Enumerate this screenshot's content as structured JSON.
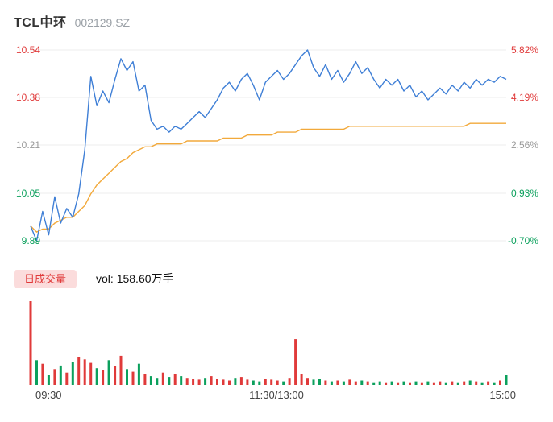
{
  "header": {
    "name": "TCL中环",
    "code": "002129.SZ"
  },
  "colors": {
    "line": "#3f7fd6",
    "avg": "#f2a93b",
    "up": "#e03a3a",
    "down": "#0ba05c",
    "flat": "#999999",
    "grid": "#ececec"
  },
  "price_axis": [
    {
      "label": "10.54",
      "color": "#e03a3a"
    },
    {
      "label": "10.38",
      "color": "#e03a3a"
    },
    {
      "label": "10.21",
      "color": "#999999"
    },
    {
      "label": "10.05",
      "color": "#0ba05c"
    },
    {
      "label": "9.89",
      "color": "#0ba05c"
    }
  ],
  "pct_axis": [
    {
      "label": "5.82%",
      "color": "#e03a3a"
    },
    {
      "label": "4.19%",
      "color": "#e03a3a"
    },
    {
      "label": "2.56%",
      "color": "#999999"
    },
    {
      "label": "0.93%",
      "color": "#0ba05c"
    },
    {
      "label": "-0.70%",
      "color": "#0ba05c"
    }
  ],
  "volume_legend": {
    "label": "日成交量",
    "text": "vol: 158.60万手"
  },
  "time_axis": {
    "open": "09:30",
    "midday": "11:30/13:00",
    "close": "15:00"
  },
  "chart_data": {
    "type": "line",
    "title": "TCL中环 002129.SZ 分时图",
    "x_labels": [
      "09:30",
      "11:30/13:00",
      "15:00"
    ],
    "y_left_ticks": [
      10.54,
      10.38,
      10.21,
      10.05,
      9.89
    ],
    "y_right_ticks": [
      "5.82%",
      "4.19%",
      "2.56%",
      "0.93%",
      "-0.70%"
    ],
    "ylim": [
      9.89,
      10.54
    ],
    "prev_close": 9.96,
    "grid": true,
    "volume_total_label": "158.60万手",
    "series": [
      {
        "name": "price",
        "values": [
          9.94,
          9.89,
          9.99,
          9.91,
          10.04,
          9.95,
          10.0,
          9.97,
          10.05,
          10.2,
          10.45,
          10.35,
          10.4,
          10.36,
          10.44,
          10.51,
          10.47,
          10.5,
          10.4,
          10.42,
          10.3,
          10.27,
          10.28,
          10.26,
          10.28,
          10.27,
          10.29,
          10.31,
          10.33,
          10.31,
          10.34,
          10.37,
          10.41,
          10.43,
          10.4,
          10.44,
          10.46,
          10.42,
          10.37,
          10.43,
          10.45,
          10.47,
          10.44,
          10.46,
          10.49,
          10.52,
          10.54,
          10.48,
          10.45,
          10.49,
          10.44,
          10.47,
          10.43,
          10.46,
          10.5,
          10.46,
          10.48,
          10.44,
          10.41,
          10.44,
          10.42,
          10.44,
          10.4,
          10.42,
          10.38,
          10.4,
          10.37,
          10.39,
          10.41,
          10.39,
          10.42,
          10.4,
          10.43,
          10.41,
          10.44,
          10.42,
          10.44,
          10.43,
          10.45,
          10.44
        ]
      },
      {
        "name": "avg_price",
        "values": [
          9.94,
          9.92,
          9.93,
          9.93,
          9.95,
          9.96,
          9.97,
          9.97,
          9.99,
          10.01,
          10.05,
          10.08,
          10.1,
          10.12,
          10.14,
          10.16,
          10.17,
          10.19,
          10.2,
          10.21,
          10.21,
          10.22,
          10.22,
          10.22,
          10.22,
          10.22,
          10.23,
          10.23,
          10.23,
          10.23,
          10.23,
          10.23,
          10.24,
          10.24,
          10.24,
          10.24,
          10.25,
          10.25,
          10.25,
          10.25,
          10.25,
          10.26,
          10.26,
          10.26,
          10.26,
          10.27,
          10.27,
          10.27,
          10.27,
          10.27,
          10.27,
          10.27,
          10.27,
          10.28,
          10.28,
          10.28,
          10.28,
          10.28,
          10.28,
          10.28,
          10.28,
          10.28,
          10.28,
          10.28,
          10.28,
          10.28,
          10.28,
          10.28,
          10.28,
          10.28,
          10.28,
          10.28,
          10.28,
          10.29,
          10.29,
          10.29,
          10.29,
          10.29,
          10.29,
          10.29
        ]
      },
      {
        "name": "volume_10k_lots",
        "values": [
          9.5,
          2.8,
          2.4,
          1.1,
          1.8,
          2.2,
          1.4,
          2.6,
          3.2,
          2.9,
          2.5,
          1.9,
          1.7,
          2.8,
          2.1,
          3.3,
          1.8,
          1.5,
          2.4,
          1.2,
          1.0,
          0.8,
          1.4,
          0.9,
          1.2,
          1.0,
          0.8,
          0.7,
          0.6,
          0.8,
          1.0,
          0.7,
          0.6,
          0.5,
          0.8,
          0.9,
          0.6,
          0.5,
          0.4,
          0.7,
          0.6,
          0.5,
          0.4,
          0.8,
          5.2,
          1.2,
          0.8,
          0.6,
          0.7,
          0.5,
          0.4,
          0.5,
          0.4,
          0.6,
          0.4,
          0.5,
          0.4,
          0.3,
          0.4,
          0.3,
          0.4,
          0.3,
          0.4,
          0.3,
          0.4,
          0.3,
          0.4,
          0.3,
          0.4,
          0.3,
          0.4,
          0.3,
          0.4,
          0.5,
          0.4,
          0.3,
          0.4,
          0.3,
          0.5,
          1.1
        ]
      }
    ]
  }
}
